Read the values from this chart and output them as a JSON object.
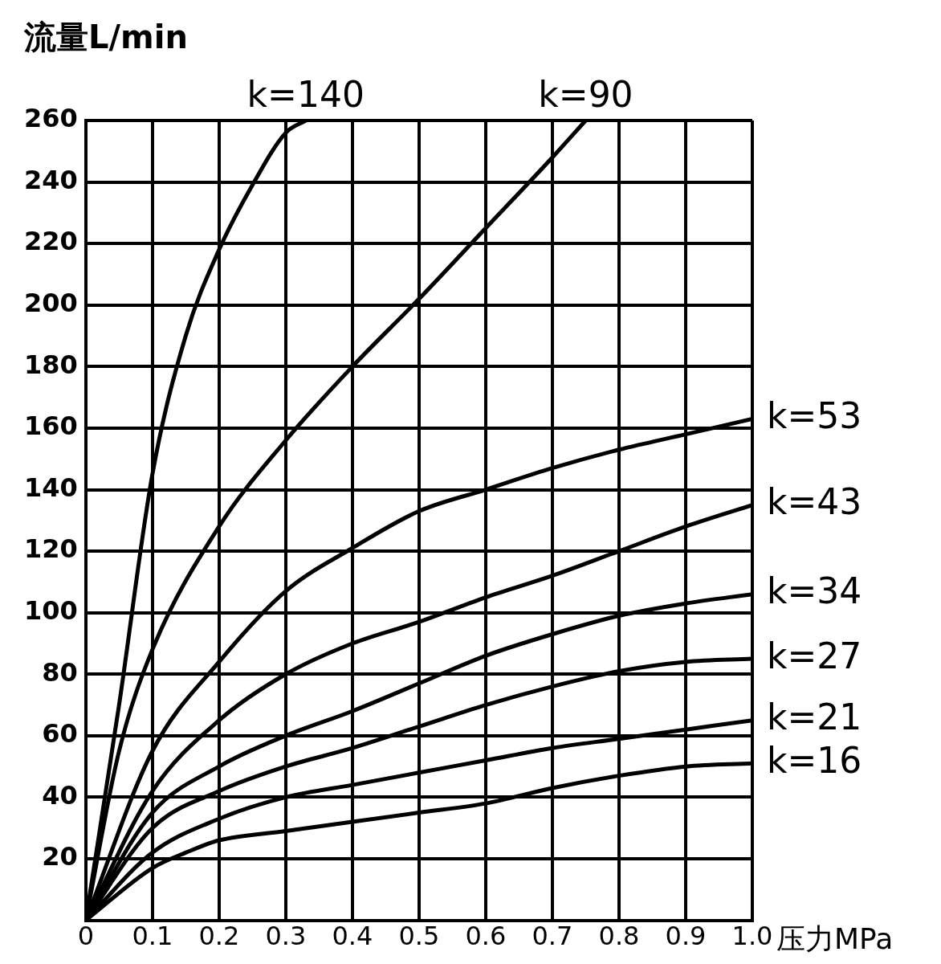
{
  "chart_data": {
    "type": "line",
    "xlabel": "压力MPa",
    "ylabel": "流量L/min",
    "xlim": [
      0,
      1
    ],
    "ylim": [
      0,
      260
    ],
    "xticks": [
      0,
      0.1,
      0.2,
      0.3,
      0.4,
      0.5,
      0.6,
      0.7,
      0.8,
      0.9,
      {
        "value": 1,
        "label": "1.0"
      }
    ],
    "yticks": [
      20,
      40,
      60,
      80,
      100,
      120,
      140,
      160,
      180,
      200,
      220,
      240,
      260
    ],
    "grid": true,
    "legend": false,
    "marker": "none",
    "line_style": "solid",
    "series": [
      {
        "name": "k=140",
        "color": "#000000",
        "x": [
          0,
          0.05,
          0.1,
          0.15,
          0.2,
          0.25,
          0.3,
          0.33
        ],
        "values": [
          0,
          70,
          145,
          190,
          218,
          239,
          256,
          260
        ]
      },
      {
        "name": "k=90",
        "color": "#000000",
        "x": [
          0,
          0.05,
          0.1,
          0.2,
          0.3,
          0.4,
          0.5,
          0.6,
          0.7,
          0.75
        ],
        "values": [
          0,
          55,
          88,
          128,
          156,
          180,
          202,
          225,
          248,
          260
        ]
      },
      {
        "name": "k=53",
        "color": "#000000",
        "x": [
          0,
          0.1,
          0.2,
          0.3,
          0.4,
          0.5,
          0.6,
          0.7,
          0.8,
          0.9,
          1
        ],
        "values": [
          0,
          55,
          84,
          107,
          121,
          133,
          140,
          147,
          153,
          158,
          163
        ]
      },
      {
        "name": "k=43",
        "color": "#000000",
        "x": [
          0,
          0.1,
          0.2,
          0.3,
          0.4,
          0.5,
          0.6,
          0.7,
          0.8,
          0.9,
          1
        ],
        "values": [
          0,
          42,
          65,
          80,
          90,
          97,
          105,
          112,
          120,
          128,
          135
        ]
      },
      {
        "name": "k=34",
        "color": "#000000",
        "x": [
          0,
          0.1,
          0.2,
          0.3,
          0.4,
          0.5,
          0.6,
          0.7,
          0.8,
          0.9,
          1
        ],
        "values": [
          0,
          35,
          50,
          60,
          68,
          77,
          86,
          93,
          99,
          103,
          106
        ]
      },
      {
        "name": "k=27",
        "color": "#000000",
        "x": [
          0,
          0.1,
          0.2,
          0.3,
          0.4,
          0.5,
          0.6,
          0.7,
          0.8,
          0.9,
          1
        ],
        "values": [
          0,
          30,
          42,
          50,
          56,
          63,
          70,
          76,
          81,
          84,
          85
        ]
      },
      {
        "name": "k=21",
        "color": "#000000",
        "x": [
          0,
          0.1,
          0.2,
          0.3,
          0.4,
          0.5,
          0.6,
          0.7,
          0.8,
          0.9,
          1
        ],
        "values": [
          0,
          22,
          33,
          40,
          44,
          48,
          52,
          56,
          59,
          62,
          65
        ]
      },
      {
        "name": "k=16",
        "color": "#000000",
        "x": [
          0,
          0.1,
          0.15,
          0.2,
          0.3,
          0.4,
          0.5,
          0.6,
          0.7,
          0.8,
          0.9,
          1
        ],
        "values": [
          0,
          17,
          22,
          26,
          29,
          32,
          35,
          38,
          43,
          47,
          50,
          51
        ]
      }
    ]
  }
}
